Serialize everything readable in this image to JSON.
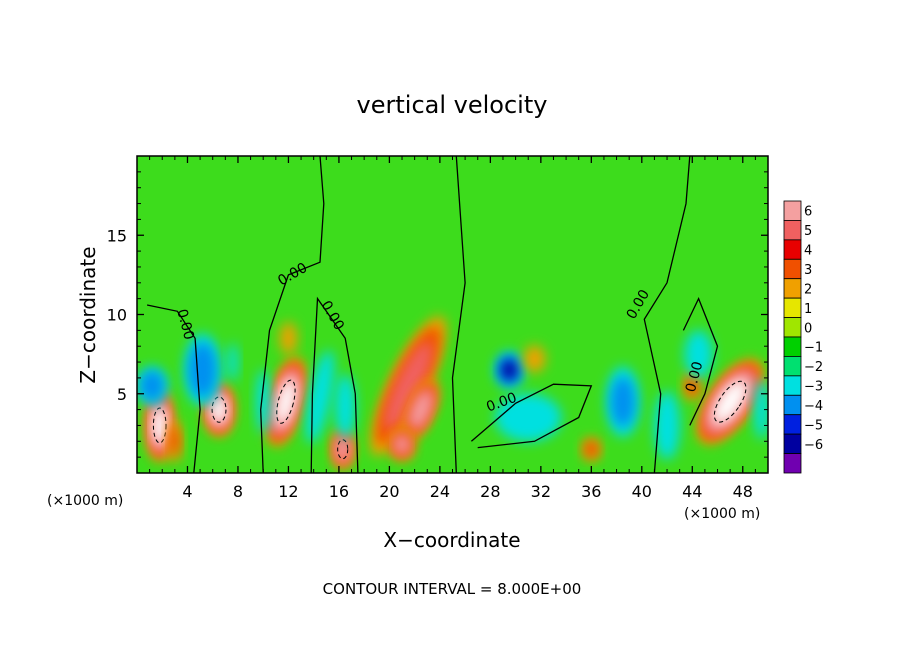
{
  "chart_data": {
    "type": "heatmap",
    "title": "vertical velocity",
    "xlabel": "X−coordinate",
    "ylabel": "Z−coordinate",
    "x_unit_left": "(×1000 m)",
    "x_unit_right": "(×1000 m)",
    "footer": "CONTOUR INTERVAL = 8.000E+00",
    "xlim": [
      0,
      50
    ],
    "ylim": [
      0,
      20
    ],
    "x_ticks": [
      4,
      8,
      12,
      16,
      20,
      24,
      28,
      32,
      36,
      40,
      44,
      48
    ],
    "x_tick_labels": [
      "4",
      "8",
      "12",
      "16",
      "20",
      "24",
      "28",
      "32",
      "36",
      "40",
      "44",
      "48"
    ],
    "y_ticks": [
      5,
      10,
      15
    ],
    "y_tick_labels": [
      "5",
      "10",
      "15"
    ],
    "colorbar": {
      "levels": [
        6,
        5,
        4,
        3,
        2,
        1,
        0,
        -1,
        -2,
        -3,
        -4,
        -5,
        -6
      ],
      "labels": [
        "6",
        "5",
        "4",
        "3",
        "2",
        "1",
        "0",
        "−1",
        "−2",
        "−3",
        "−4",
        "−5",
        "−6"
      ],
      "colors": [
        "#f4a0a0",
        "#f06060",
        "#e80000",
        "#f05000",
        "#f0a000",
        "#e6e600",
        "#a0e600",
        "#00d000",
        "#00e070",
        "#00e0e0",
        "#0090f0",
        "#0020e0",
        "#0000a0",
        "#7000b0"
      ]
    },
    "background_color": "#3ddc1c",
    "features": [
      {
        "x": 1.8,
        "z": 3.0,
        "sx": 1.0,
        "sz": 2.2,
        "v": 9.0,
        "rot": 0
      },
      {
        "x": 1.2,
        "z": 5.5,
        "sx": 1.3,
        "sz": 1.3,
        "v": -4.5,
        "rot": 0
      },
      {
        "x": 3.0,
        "z": 2.0,
        "sx": 0.6,
        "sz": 1.5,
        "v": 3.5,
        "rot": 0
      },
      {
        "x": 6.5,
        "z": 4.0,
        "sx": 1.1,
        "sz": 1.6,
        "v": 9.0,
        "rot": 0
      },
      {
        "x": 5.2,
        "z": 6.5,
        "sx": 1.6,
        "sz": 2.5,
        "v": -4.0,
        "rot": 0
      },
      {
        "x": 7.6,
        "z": 7.0,
        "sx": 0.5,
        "sz": 1.5,
        "v": -2.5,
        "rot": 0
      },
      {
        "x": 11.8,
        "z": 4.5,
        "sx": 1.2,
        "sz": 2.8,
        "v": 9.0,
        "rot": 0.25
      },
      {
        "x": 12.0,
        "z": 8.5,
        "sx": 0.8,
        "sz": 1.2,
        "v": 3.0,
        "rot": 0
      },
      {
        "x": 10.0,
        "z": 4.5,
        "sx": 0.7,
        "sz": 2.5,
        "v": -2.5,
        "rot": 0
      },
      {
        "x": 14.5,
        "z": 4.8,
        "sx": 1.0,
        "sz": 3.5,
        "v": -3.0,
        "rot": 0.2
      },
      {
        "x": 16.3,
        "z": 1.5,
        "sx": 0.8,
        "sz": 1.2,
        "v": 8.0,
        "rot": 0
      },
      {
        "x": 16.5,
        "z": 4.2,
        "sx": 1.0,
        "sz": 2.5,
        "v": -2.5,
        "rot": 0
      },
      {
        "x": 21.5,
        "z": 5.5,
        "sx": 1.6,
        "sz": 5.0,
        "v": 5.5,
        "rot": 0.45
      },
      {
        "x": 22.5,
        "z": 4.0,
        "sx": 1.0,
        "sz": 2.0,
        "v": 7.5,
        "rot": 0.4
      },
      {
        "x": 21.0,
        "z": 1.8,
        "sx": 1.0,
        "sz": 1.0,
        "v": 6.5,
        "rot": 0
      },
      {
        "x": 29.5,
        "z": 6.5,
        "sx": 1.2,
        "sz": 1.2,
        "v": -5.0,
        "rot": 0
      },
      {
        "x": 31.5,
        "z": 7.2,
        "sx": 1.0,
        "sz": 1.0,
        "v": 3.0,
        "rot": 0
      },
      {
        "x": 31.0,
        "z": 3.5,
        "sx": 3.5,
        "sz": 2.0,
        "v": -2.0,
        "rot": 0
      },
      {
        "x": 36.0,
        "z": 1.5,
        "sx": 0.8,
        "sz": 0.8,
        "v": 4.0,
        "rot": 0
      },
      {
        "x": 38.5,
        "z": 4.5,
        "sx": 1.5,
        "sz": 2.5,
        "v": -3.5,
        "rot": 0
      },
      {
        "x": 42.0,
        "z": 3.0,
        "sx": 1.2,
        "sz": 2.5,
        "v": -3.0,
        "rot": 0
      },
      {
        "x": 44.0,
        "z": 5.5,
        "sx": 0.7,
        "sz": 1.0,
        "v": 4.0,
        "rot": 0
      },
      {
        "x": 47.0,
        "z": 4.5,
        "sx": 1.6,
        "sz": 3.0,
        "v": 9.0,
        "rot": 0.6
      },
      {
        "x": 44.5,
        "z": 7.5,
        "sx": 1.5,
        "sz": 2.0,
        "v": -2.0,
        "rot": 0
      },
      {
        "x": 49.5,
        "z": 4.0,
        "sx": 0.8,
        "sz": 2.5,
        "v": -2.0,
        "rot": 0
      }
    ],
    "zero_contour_labels": [
      {
        "text": "0.00",
        "x": 12.5,
        "z": 12.3,
        "angle": -30
      },
      {
        "text": "0.00",
        "x": 15.2,
        "z": 9.8,
        "angle": 60
      },
      {
        "text": "0.00",
        "x": 3.5,
        "z": 9.3,
        "angle": 75
      },
      {
        "text": "0.00",
        "x": 29.0,
        "z": 4.2,
        "angle": -20
      },
      {
        "text": "0.00",
        "x": 40.0,
        "z": 10.5,
        "angle": -60
      },
      {
        "text": "0.00",
        "x": 44.5,
        "z": 6.0,
        "angle": -75
      }
    ]
  }
}
